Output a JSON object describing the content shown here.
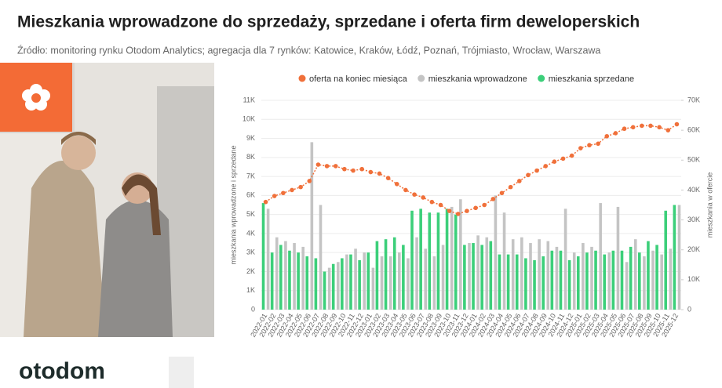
{
  "header": {
    "title": "Mieszkania wprowadzone do sprzedaży, sprzedane i oferta firm deweloperskich",
    "source": "Źródło: monitoring rynku Otodom Analytics; agregacja dla 7 rynków: Katowice, Kraków, Łódź, Poznań, Trójmiasto, Wrocław,  Warszawa"
  },
  "logo": "otodom",
  "chart_data": {
    "type": "bar",
    "ylabel": "mieszkania wprowadzone i sprzedane",
    "y2label": "mieszkania w ofercie",
    "grid": true,
    "categories": [
      "2022-01",
      "2022-02",
      "2022-03",
      "2022-04",
      "2022-05",
      "2022-06",
      "2022-07",
      "2022-08",
      "2022-09",
      "2022-10",
      "2022-11",
      "2022-12",
      "2023-01",
      "2023-02",
      "2023-03",
      "2023-04",
      "2023-05",
      "2023-06",
      "2023-07",
      "2023-08",
      "2023-09",
      "2023-10",
      "2023-11",
      "2023-12",
      "2024-01",
      "2024-02",
      "2024-03",
      "2024-04",
      "2024-05",
      "2024-06",
      "2024-07",
      "2024-08",
      "2024-09",
      "2024-10",
      "2024-11",
      "2024-12",
      "2025-01",
      "2025-02",
      "2025-03",
      "2025-04",
      "2025-05",
      "2025-06",
      "2025-07",
      "2025-08",
      "2025-09",
      "2025-10",
      "2025-11",
      "2025-12"
    ],
    "ylim": [
      0,
      11000
    ],
    "yticks": [
      0,
      {
        "value": 1000,
        "label": "1K"
      },
      {
        "value": 2000,
        "label": "2K"
      },
      {
        "value": 3000,
        "label": "3K"
      },
      {
        "value": 4000,
        "label": "4K"
      },
      {
        "value": 5000,
        "label": "5K"
      },
      {
        "value": 6000,
        "label": "6K"
      },
      {
        "value": 7000,
        "label": "7K"
      },
      {
        "value": 8000,
        "label": "8K"
      },
      {
        "value": 9000,
        "label": "9K"
      },
      {
        "value": 10000,
        "label": "10K"
      },
      {
        "value": 11000,
        "label": "11K"
      }
    ],
    "y2lim": [
      0,
      70000
    ],
    "y2ticks": [
      0,
      {
        "value": 10000,
        "label": "10K"
      },
      {
        "value": 20000,
        "label": "20K"
      },
      {
        "value": 30000,
        "label": "30K"
      },
      {
        "value": 40000,
        "label": "40K"
      },
      {
        "value": 50000,
        "label": "50K"
      },
      {
        "value": 60000,
        "label": "60K"
      },
      {
        "value": 70000,
        "label": "70K"
      }
    ],
    "series": [
      {
        "name": "oferta na koniec miesiąca",
        "color": "#f0703a",
        "type": "line",
        "axis": "y2",
        "values": [
          36000,
          38000,
          39000,
          40000,
          41000,
          43000,
          48500,
          48000,
          48000,
          47000,
          46500,
          47000,
          46000,
          45500,
          44000,
          42000,
          40000,
          38500,
          37500,
          36000,
          35000,
          33000,
          32000,
          33000,
          34000,
          35000,
          37000,
          39000,
          41000,
          43000,
          45000,
          46500,
          48000,
          49500,
          50500,
          51500,
          54000,
          55000,
          55500,
          58000,
          59000,
          60500,
          61000,
          61500,
          61500,
          61000,
          60000,
          62000
        ]
      },
      {
        "name": "mieszkania wprowadzone",
        "color": "#c4c4c4",
        "values": [
          5300,
          3800,
          3600,
          3500,
          3300,
          8800,
          5500,
          2200,
          2500,
          2900,
          3200,
          3000,
          2200,
          2800,
          2800,
          3000,
          2700,
          3800,
          3200,
          2800,
          3400,
          5400,
          5800,
          3500,
          3900,
          3800,
          6000,
          5100,
          3700,
          3800,
          3500,
          3700,
          3600,
          3300,
          5300,
          3000,
          3500,
          3300,
          5600,
          3000,
          5400,
          2500,
          3700,
          2800,
          3100,
          2900,
          3200,
          5500
        ]
      },
      {
        "name": "mieszkania sprzedane",
        "color": "#3ccf7a",
        "values": [
          5600,
          3000,
          3400,
          3100,
          3000,
          2800,
          2700,
          2000,
          2400,
          2700,
          2900,
          2600,
          3000,
          3600,
          3700,
          3800,
          3400,
          5200,
          5300,
          5100,
          5100,
          5300,
          5000,
          3400,
          3500,
          3400,
          3600,
          2900,
          2900,
          2900,
          2700,
          2600,
          2800,
          3100,
          3100,
          2600,
          2800,
          3000,
          3100,
          2900,
          3100,
          3100,
          3300,
          3000,
          3600,
          3400,
          5200,
          5500
        ]
      }
    ]
  }
}
